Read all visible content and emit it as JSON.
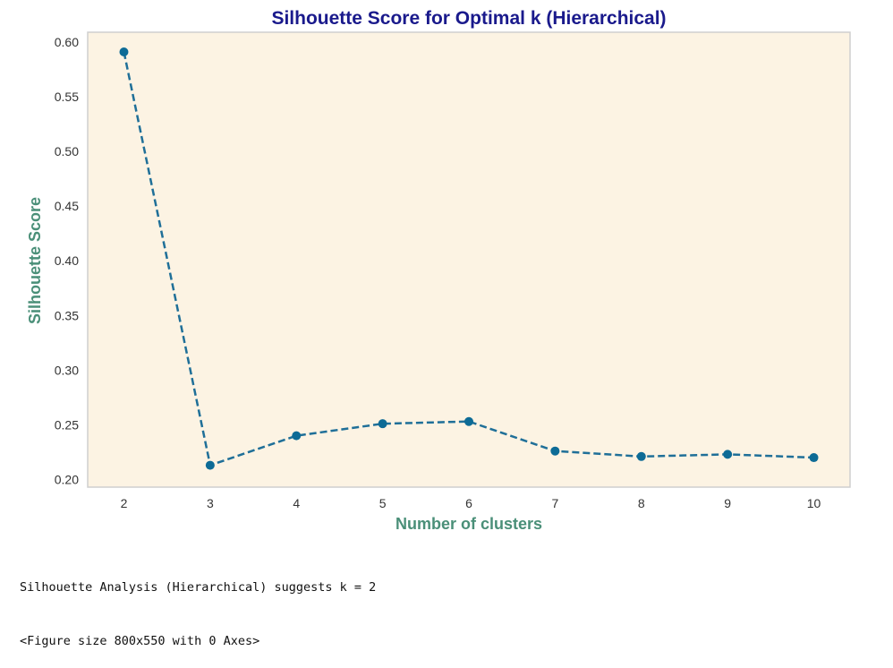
{
  "chart_data": {
    "type": "line",
    "title": "Silhouette Score for Optimal k (Hierarchical)",
    "xlabel": "Number of clusters",
    "ylabel": "Silhouette Score",
    "x": [
      2,
      3,
      4,
      5,
      6,
      7,
      8,
      9,
      10
    ],
    "series": [
      {
        "values": [
          0.591,
          0.213,
          0.24,
          0.251,
          0.253,
          0.226,
          0.221,
          0.223,
          0.22
        ]
      }
    ],
    "x_ticks": [
      "2",
      "3",
      "4",
      "5",
      "6",
      "7",
      "8",
      "9",
      "10"
    ],
    "y_ticks": [
      "0.20",
      "0.25",
      "0.30",
      "0.35",
      "0.40",
      "0.45",
      "0.50",
      "0.55",
      "0.60"
    ],
    "xlim": [
      1.58,
      10.42
    ],
    "ylim": [
      0.193,
      0.609
    ],
    "grid": false,
    "legend": "none",
    "line_style": "dashed",
    "marker": "circle",
    "colors": {
      "series": "#1f6f98",
      "marker": "#0d6b96",
      "plot_background": "#fcf3e3",
      "frame": "#cfcfcf",
      "title": "#1a1a8c",
      "axis_label": "#4a8f78"
    }
  },
  "console": {
    "line1": "Silhouette Analysis (Hierarchical) suggests k = 2",
    "line2": "<Figure size 800x550 with 0 Axes>"
  }
}
